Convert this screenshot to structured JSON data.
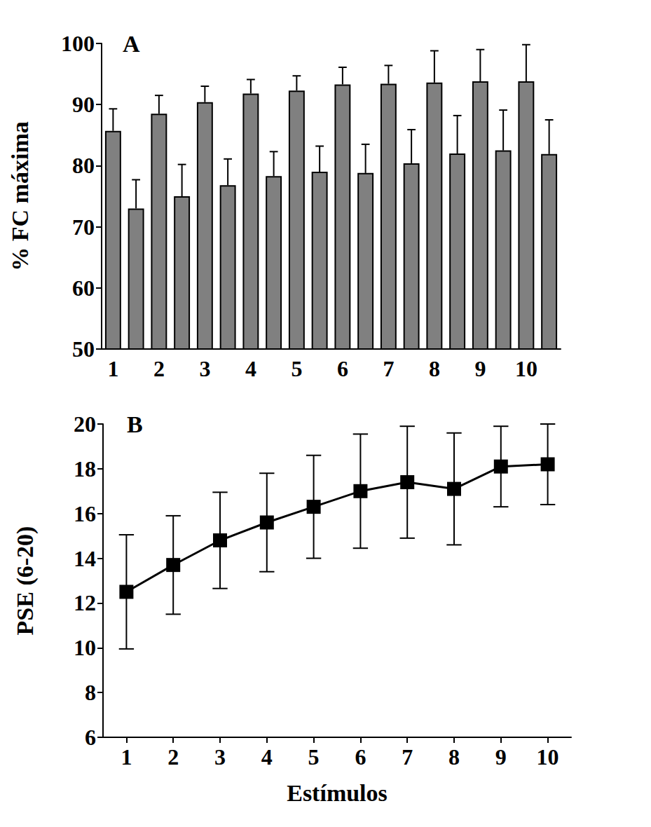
{
  "chart_data": [
    {
      "type": "bar",
      "title": "A",
      "categories": [
        "1",
        null,
        "2",
        null,
        "3",
        null,
        "4",
        null,
        "5",
        null,
        "6",
        null,
        "7",
        null,
        "8",
        null,
        "9",
        null,
        "10",
        null
      ],
      "values": [
        85.7,
        73.0,
        88.5,
        75.0,
        90.4,
        76.8,
        91.8,
        78.3,
        92.3,
        79.0,
        93.3,
        78.8,
        93.4,
        80.4,
        93.6,
        82.0,
        93.8,
        82.5,
        93.8,
        81.9
      ],
      "errors": [
        3.6,
        4.7,
        3.0,
        5.2,
        2.6,
        4.3,
        2.3,
        4.0,
        2.4,
        4.2,
        2.8,
        4.7,
        3.0,
        5.5,
        5.2,
        6.2,
        5.2,
        6.6,
        6.0,
        5.6
      ],
      "color": "#808080",
      "ylabel": "% FC máxima",
      "ylim": [
        50,
        100
      ],
      "yticks": [
        50,
        60,
        70,
        80,
        90,
        100
      ],
      "grid": false
    },
    {
      "type": "line",
      "title": "B",
      "categories": [
        "1",
        "2",
        "3",
        "4",
        "5",
        "6",
        "7",
        "8",
        "9",
        "10"
      ],
      "values": [
        12.5,
        13.7,
        14.8,
        15.6,
        16.3,
        17.0,
        17.4,
        17.1,
        18.1,
        18.2
      ],
      "errors": [
        2.55,
        2.2,
        2.15,
        2.2,
        2.3,
        2.55,
        2.5,
        2.5,
        1.8,
        1.8
      ],
      "color": "#000000",
      "marker": "square",
      "xlabel": "Estímulos",
      "ylabel": "PSE (6-20)",
      "ylim": [
        6,
        20
      ],
      "yticks": [
        6,
        8,
        10,
        12,
        14,
        16,
        18,
        20
      ],
      "grid": false
    }
  ]
}
